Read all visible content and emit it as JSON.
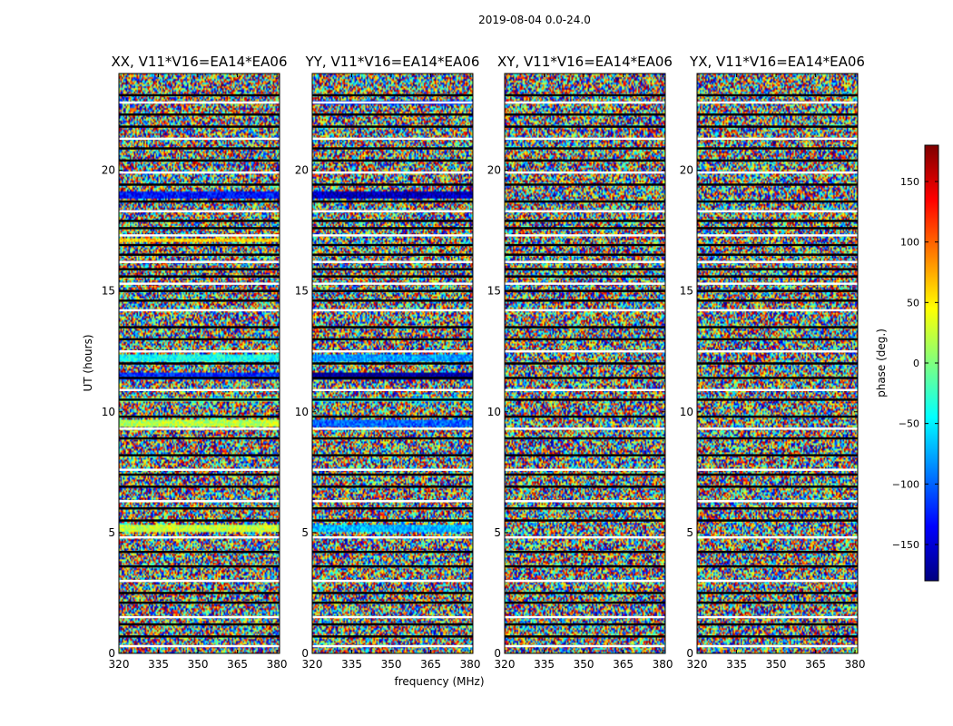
{
  "chart_data": {
    "type": "heatmap",
    "suptitle": "2019-08-04 0.0-24.0",
    "xlabel": "frequency (MHz)",
    "ylabel": "UT (hours)",
    "xlim": [
      320,
      381
    ],
    "ylim": [
      0,
      24
    ],
    "xticks": [
      320,
      335,
      350,
      365,
      380
    ],
    "yticks": [
      0,
      5,
      10,
      15,
      20
    ],
    "panels": [
      {
        "title": "XX, V11*V16=EA14*EA06"
      },
      {
        "title": "YY, V11*V16=EA14*EA06"
      },
      {
        "title": "XY, V11*V16=EA14*EA06"
      },
      {
        "title": "YX, V11*V16=EA14*EA06"
      }
    ],
    "colorbar": {
      "label": "phase (deg.)",
      "range": [
        -180,
        180
      ],
      "ticks": [
        -150,
        -100,
        -50,
        0,
        50,
        100,
        150
      ],
      "colormap": [
        "#00007f",
        "#0000ff",
        "#007fff",
        "#00ffff",
        "#7fff7f",
        "#ffff00",
        "#ff7f00",
        "#ff0000",
        "#7f0000"
      ]
    },
    "flagged_hours": [
      0.3,
      0.7,
      1.2,
      1.5,
      2.1,
      2.5,
      3.0,
      3.6,
      4.2,
      4.8,
      5.5,
      6.0,
      6.3,
      6.9,
      7.4,
      7.6,
      8.2,
      8.9,
      9.3,
      9.8,
      10.5,
      10.9,
      11.4,
      12.0,
      12.5,
      13.0,
      13.5,
      14.2,
      14.6,
      15.0,
      15.3,
      15.6,
      15.9,
      16.2,
      16.5,
      16.9,
      17.3,
      17.6,
      17.9,
      18.3,
      18.7,
      19.4,
      19.9,
      20.4,
      20.9,
      21.3,
      21.8,
      22.3,
      22.8,
      23.1
    ],
    "coherent_bands": [
      {
        "panel": 0,
        "hours": [
          5.0,
          5.3
        ],
        "phase": 25
      },
      {
        "panel": 0,
        "hours": [
          9.4,
          9.7
        ],
        "phase": 20
      },
      {
        "panel": 0,
        "hours": [
          10.4,
          10.6
        ],
        "phase": -10
      },
      {
        "panel": 0,
        "hours": [
          11.3,
          11.6
        ],
        "phase": -120
      },
      {
        "panel": 0,
        "hours": [
          12.1,
          12.4
        ],
        "phase": -40
      },
      {
        "panel": 0,
        "hours": [
          18.8,
          19.1
        ],
        "phase": -130
      },
      {
        "panel": 0,
        "hours": [
          17.0,
          17.2
        ],
        "phase": 60
      },
      {
        "panel": 1,
        "hours": [
          5.0,
          5.3
        ],
        "phase": -70
      },
      {
        "panel": 1,
        "hours": [
          9.4,
          9.7
        ],
        "phase": -100
      },
      {
        "panel": 1,
        "hours": [
          10.4,
          10.6
        ],
        "phase": -40
      },
      {
        "panel": 1,
        "hours": [
          11.3,
          11.6
        ],
        "phase": -175
      },
      {
        "panel": 1,
        "hours": [
          12.1,
          12.4
        ],
        "phase": -80
      },
      {
        "panel": 1,
        "hours": [
          18.8,
          19.1
        ],
        "phase": -160
      },
      {
        "panel": 1,
        "hours": [
          22.7,
          22.9
        ],
        "phase": -120
      }
    ]
  }
}
